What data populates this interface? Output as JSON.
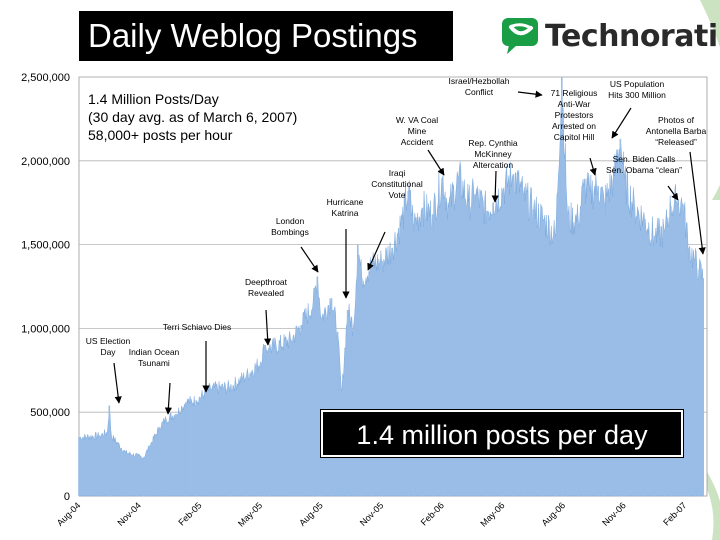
{
  "slide": {
    "title": "Daily Weblog Postings",
    "brand": "Technorati",
    "callout": "1.4 million posts per day"
  },
  "colors": {
    "fill": "#99bde6",
    "stroke": "#6f9fd8",
    "brand_green": "#1a9e45",
    "deco_green": "#6ab04c"
  },
  "chart_data": {
    "type": "area",
    "y_ticks": [
      "0",
      "500,000",
      "1,000,000",
      "1,500,000",
      "2,000,000",
      "2,500,000"
    ],
    "y_tick_values": [
      0,
      500000,
      1000000,
      1500000,
      2000000,
      2500000
    ],
    "ylim": [
      0,
      2500000
    ],
    "x_ticks": [
      "Aug-04",
      "Nov-04",
      "Feb-05",
      "May-05",
      "Aug-05",
      "Nov-05",
      "Feb-06",
      "May-06",
      "Aug-06",
      "Nov-06",
      "Feb-07"
    ],
    "x_tick_positions": [
      0,
      3,
      6,
      9,
      12,
      15,
      18,
      21,
      24,
      27,
      30
    ],
    "grid": "horizontal",
    "info_lines": [
      "1.4 Million Posts/Day",
      "(30 day avg. as of March 6, 2007)",
      "58,000+ posts per hour"
    ],
    "series": [
      {
        "points": [
          [
            0.0,
            350000
          ],
          [
            1.0,
            360000
          ],
          [
            1.4,
            380000
          ],
          [
            1.5,
            540000
          ],
          [
            1.6,
            360000
          ],
          [
            2.3,
            260000
          ],
          [
            2.9,
            240000
          ],
          [
            3.2,
            230000
          ],
          [
            3.5,
            300000
          ],
          [
            4.0,
            410000
          ],
          [
            4.3,
            460000
          ],
          [
            4.8,
            490000
          ],
          [
            5.3,
            560000
          ],
          [
            5.8,
            570000
          ],
          [
            6.5,
            640000
          ],
          [
            7.5,
            650000
          ],
          [
            8.3,
            720000
          ],
          [
            9.0,
            800000
          ],
          [
            9.2,
            900000
          ],
          [
            9.4,
            880000
          ],
          [
            10.5,
            930000
          ],
          [
            11.0,
            1020000
          ],
          [
            11.6,
            1150000
          ],
          [
            11.8,
            1310000
          ],
          [
            12.0,
            1060000
          ],
          [
            12.5,
            1180000
          ],
          [
            12.8,
            980000
          ],
          [
            13.0,
            600000
          ],
          [
            13.3,
            1110000
          ],
          [
            13.6,
            1000000
          ],
          [
            13.8,
            1500000
          ],
          [
            14.0,
            1300000
          ],
          [
            14.5,
            1380000
          ],
          [
            15.0,
            1400000
          ],
          [
            15.5,
            1480000
          ],
          [
            16.0,
            1650000
          ],
          [
            16.3,
            1820000
          ],
          [
            16.6,
            1620000
          ],
          [
            17.0,
            1720000
          ],
          [
            17.5,
            1680000
          ],
          [
            18.0,
            1900000
          ],
          [
            18.3,
            1720000
          ],
          [
            18.8,
            1900000
          ],
          [
            19.3,
            1750000
          ],
          [
            19.6,
            1800000
          ],
          [
            20.2,
            1700000
          ],
          [
            20.5,
            1750000
          ],
          [
            21.0,
            1830000
          ],
          [
            21.5,
            1920000
          ],
          [
            22.0,
            1800000
          ],
          [
            22.5,
            1710000
          ],
          [
            23.0,
            1650000
          ],
          [
            23.6,
            1550000
          ],
          [
            23.9,
            2500000
          ],
          [
            24.2,
            1650000
          ],
          [
            24.7,
            1650000
          ],
          [
            25.0,
            1850000
          ],
          [
            25.3,
            1810000
          ],
          [
            25.7,
            1850000
          ],
          [
            26.0,
            1750000
          ],
          [
            26.5,
            1910000
          ],
          [
            26.8,
            2130000
          ],
          [
            27.0,
            1880000
          ],
          [
            27.5,
            1720000
          ],
          [
            28.0,
            1650000
          ],
          [
            28.5,
            1550000
          ],
          [
            29.0,
            1580000
          ],
          [
            29.3,
            1730000
          ],
          [
            29.6,
            1760000
          ],
          [
            29.9,
            1740000
          ],
          [
            30.2,
            1480000
          ],
          [
            30.5,
            1400000
          ],
          [
            30.7,
            1350000
          ],
          [
            30.9,
            1300000
          ]
        ]
      }
    ],
    "annotations": [
      {
        "lines": [
          "US Election",
          "Day"
        ]
      },
      {
        "lines": [
          "Indian Ocean",
          "Tsunami"
        ]
      },
      {
        "lines": [
          "Terri Schiavo Dies"
        ]
      },
      {
        "lines": [
          "Deepthroat",
          "Revealed"
        ]
      },
      {
        "lines": [
          "London",
          "Bombings"
        ]
      },
      {
        "lines": [
          "Hurricane",
          "Katrina"
        ]
      },
      {
        "lines": [
          "Iraqi",
          "Constitutional",
          "Vote"
        ]
      },
      {
        "lines": [
          "W. VA Coal",
          "Mine",
          "Accident"
        ]
      },
      {
        "lines": [
          "Israel/Hezbollah",
          "Conflict"
        ]
      },
      {
        "lines": [
          "Rep. Cynthia",
          "McKinney",
          "Altercation"
        ]
      },
      {
        "lines": [
          "71 Religious",
          "Anti-War",
          "Protestors",
          "Arrested on",
          "Capitol Hill"
        ]
      },
      {
        "lines": [
          "US Population",
          "Hits 300 Million"
        ]
      },
      {
        "lines": [
          "Sen. Biden Calls",
          "Sen. Obama “clean”"
        ]
      },
      {
        "lines": [
          "Photos of",
          "Antonella Barba",
          "“Released”"
        ]
      }
    ]
  }
}
